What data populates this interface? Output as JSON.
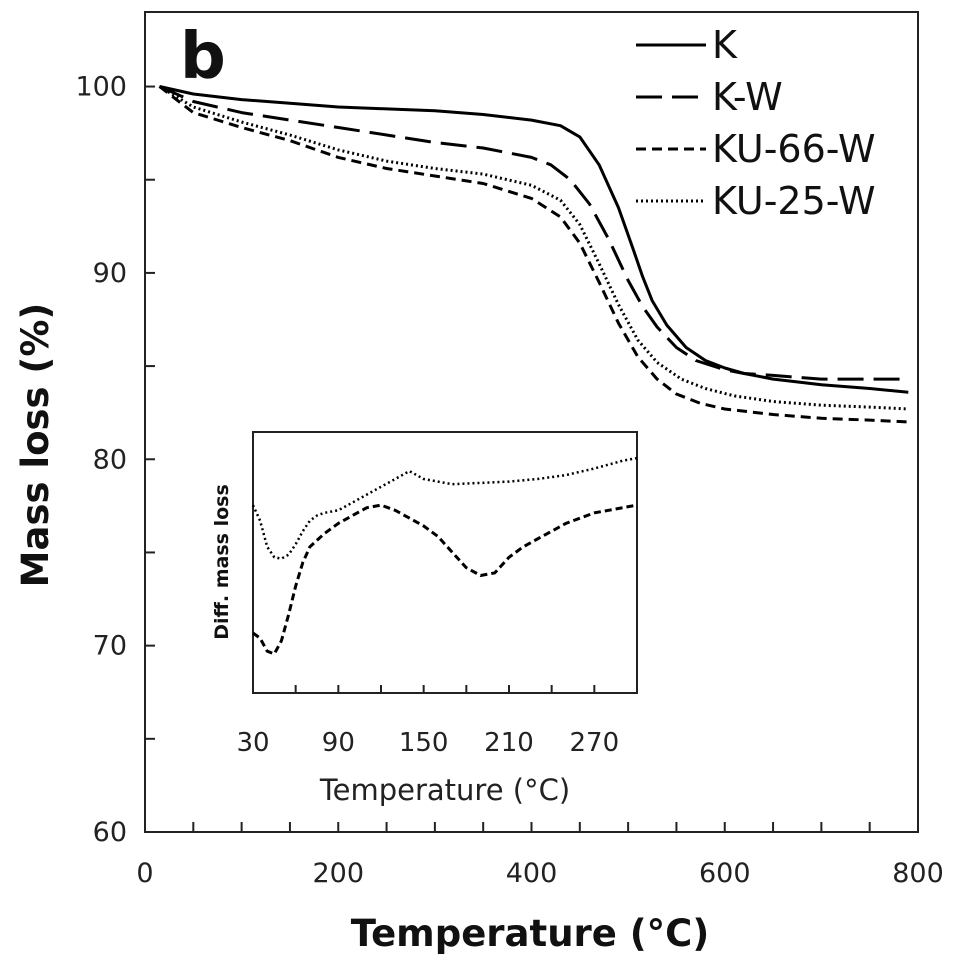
{
  "panel_label": "b",
  "chart_data": [
    {
      "type": "line",
      "xlabel": "Temperature (°C)",
      "ylabel": "Mass loss (%)",
      "xlim": [
        0,
        800
      ],
      "ylim": [
        60,
        104
      ],
      "xticks": [
        0,
        200,
        400,
        600,
        800
      ],
      "yticks": [
        60,
        70,
        80,
        90,
        100
      ],
      "x_tick_labels": [
        "0",
        "200",
        "400",
        "600",
        "800"
      ],
      "y_tick_labels": [
        "60",
        "70",
        "80",
        "90",
        "100"
      ],
      "legend_position": "top-right",
      "grid": false,
      "series": [
        {
          "name": "K",
          "style": "solid",
          "color": "#000000",
          "x": [
            15,
            50,
            100,
            150,
            200,
            250,
            300,
            350,
            400,
            430,
            450,
            470,
            490,
            505,
            515,
            525,
            540,
            560,
            580,
            600,
            620,
            650,
            700,
            750,
            790
          ],
          "y": [
            100,
            99.6,
            99.3,
            99.1,
            98.9,
            98.8,
            98.7,
            98.5,
            98.2,
            97.9,
            97.3,
            95.8,
            93.5,
            91.3,
            89.8,
            88.5,
            87.2,
            86.0,
            85.3,
            84.9,
            84.6,
            84.3,
            84.0,
            83.8,
            83.6
          ]
        },
        {
          "name": "K-W",
          "style": "long-dash",
          "color": "#000000",
          "x": [
            15,
            50,
            100,
            150,
            200,
            250,
            300,
            350,
            400,
            420,
            440,
            460,
            480,
            500,
            515,
            530,
            550,
            570,
            600,
            620,
            650,
            700,
            750,
            790
          ],
          "y": [
            100,
            99.2,
            98.6,
            98.2,
            97.8,
            97.4,
            97.0,
            96.7,
            96.2,
            95.8,
            95.0,
            93.7,
            91.8,
            89.6,
            88.2,
            87.1,
            86.0,
            85.3,
            84.8,
            84.6,
            84.5,
            84.3,
            84.3,
            84.3
          ]
        },
        {
          "name": "KU-66-W",
          "style": "short-dash",
          "color": "#000000",
          "x": [
            15,
            50,
            100,
            150,
            200,
            250,
            300,
            350,
            400,
            430,
            450,
            470,
            490,
            510,
            530,
            550,
            575,
            600,
            650,
            700,
            750,
            790
          ],
          "y": [
            100,
            98.6,
            97.8,
            97.1,
            96.2,
            95.6,
            95.2,
            94.8,
            94.0,
            93.0,
            91.6,
            89.5,
            87.3,
            85.5,
            84.3,
            83.5,
            83.0,
            82.7,
            82.4,
            82.2,
            82.1,
            82.0
          ]
        },
        {
          "name": "KU-25-W",
          "style": "dotted",
          "color": "#000000",
          "x": [
            15,
            50,
            100,
            150,
            200,
            250,
            300,
            350,
            400,
            430,
            450,
            470,
            490,
            510,
            530,
            555,
            580,
            610,
            650,
            700,
            750,
            790
          ],
          "y": [
            100,
            98.9,
            98.1,
            97.4,
            96.6,
            96.0,
            95.6,
            95.3,
            94.7,
            93.9,
            92.6,
            90.5,
            88.3,
            86.4,
            85.2,
            84.3,
            83.8,
            83.4,
            83.1,
            82.9,
            82.8,
            82.7
          ]
        }
      ]
    },
    {
      "type": "line",
      "inset": true,
      "xlabel": "Temperature (°C)",
      "ylabel": "Diff. mass loss",
      "xlim": [
        30,
        300
      ],
      "ylim": [
        0,
        10
      ],
      "xticks": [
        30,
        90,
        150,
        210,
        270
      ],
      "x_tick_labels": [
        "30",
        "90",
        "150",
        "210",
        "270"
      ],
      "series": [
        {
          "style": "dotted",
          "color": "#000000",
          "x": [
            30,
            35,
            40,
            45,
            50,
            55,
            60,
            65,
            70,
            75,
            80,
            90,
            100,
            110,
            120,
            130,
            140,
            150,
            160,
            170,
            190,
            210,
            230,
            250,
            270,
            290,
            300
          ],
          "y": [
            7.2,
            6.6,
            5.6,
            5.2,
            5.15,
            5.3,
            5.7,
            6.2,
            6.6,
            6.8,
            6.9,
            7.0,
            7.3,
            7.6,
            7.9,
            8.2,
            8.5,
            8.2,
            8.1,
            8.0,
            8.05,
            8.1,
            8.2,
            8.35,
            8.6,
            8.9,
            9.0
          ]
        },
        {
          "style": "short-dash",
          "color": "#000000",
          "x": [
            30,
            35,
            40,
            45,
            50,
            55,
            60,
            65,
            70,
            80,
            90,
            100,
            110,
            120,
            130,
            140,
            150,
            160,
            170,
            180,
            190,
            200,
            210,
            220,
            230,
            240,
            250,
            260,
            270,
            280,
            290,
            300
          ],
          "y": [
            2.3,
            2.1,
            1.6,
            1.5,
            2.0,
            3.0,
            4.1,
            5.0,
            5.6,
            6.1,
            6.5,
            6.8,
            7.1,
            7.2,
            7.0,
            6.7,
            6.4,
            6.0,
            5.4,
            4.8,
            4.5,
            4.6,
            5.2,
            5.6,
            5.9,
            6.2,
            6.5,
            6.7,
            6.9,
            7.0,
            7.1,
            7.2
          ]
        }
      ]
    }
  ]
}
